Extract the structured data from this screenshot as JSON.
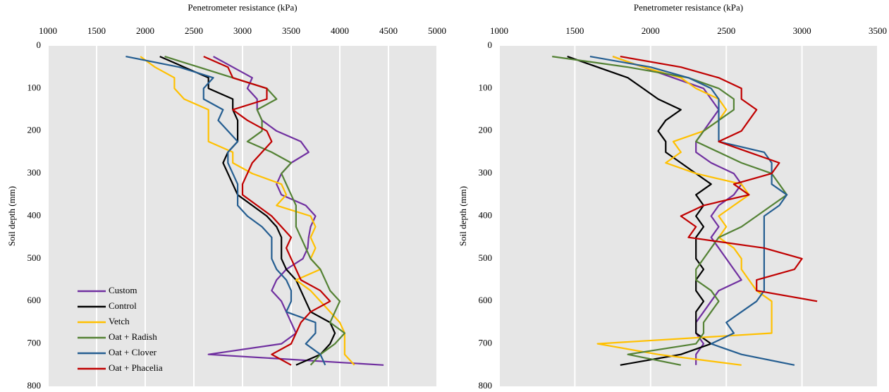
{
  "chart_data": [
    {
      "type": "line",
      "x_label": "Penetrometer resistance (kPa)",
      "y_label": "Soil depth (mm)",
      "xlim": [
        1000,
        5000
      ],
      "xticks": [
        1000,
        1500,
        2000,
        2500,
        3000,
        3500,
        4000,
        4500,
        5000
      ],
      "ylim": [
        0,
        800
      ],
      "yticks": [
        0,
        100,
        200,
        300,
        400,
        500,
        600,
        700,
        800
      ],
      "y_inverted": true,
      "grid": "x",
      "legend": "lower left",
      "y": [
        25,
        50,
        75,
        100,
        125,
        150,
        175,
        200,
        225,
        250,
        275,
        300,
        325,
        350,
        375,
        400,
        425,
        450,
        475,
        500,
        525,
        550,
        575,
        600,
        625,
        650,
        675,
        700,
        725,
        750
      ],
      "series": [
        {
          "name": "Custom",
          "color": "#7030a0",
          "values": [
            2700,
            2900,
            3100,
            3050,
            3150,
            3150,
            3200,
            3350,
            3600,
            3680,
            3500,
            3400,
            3350,
            3400,
            3650,
            3750,
            3700,
            3680,
            3670,
            3620,
            3450,
            3350,
            3300,
            3400,
            3450,
            3500,
            3550,
            3400,
            2650,
            4450
          ]
        },
        {
          "name": "Control",
          "color": "#000000",
          "values": [
            2150,
            2400,
            2650,
            2650,
            2900,
            2900,
            2950,
            2950,
            2950,
            2850,
            2800,
            2850,
            2900,
            2950,
            3100,
            3250,
            3350,
            3400,
            3400,
            3400,
            3450,
            3550,
            3600,
            3650,
            3700,
            3900,
            3950,
            3900,
            3800,
            3550
          ]
        },
        {
          "name": "Vetch",
          "color": "#ffc000",
          "values": [
            1950,
            2100,
            2300,
            2300,
            2400,
            2650,
            2650,
            2650,
            2650,
            2900,
            2900,
            3100,
            3400,
            3450,
            3350,
            3700,
            3750,
            3700,
            3750,
            3700,
            3800,
            3550,
            3700,
            3800,
            3900,
            4000,
            4050,
            4050,
            4050,
            4150
          ]
        },
        {
          "name": "Oat + Radish",
          "color": "#548235",
          "values": [
            2200,
            2550,
            2900,
            3250,
            3350,
            3150,
            3200,
            3200,
            3050,
            3300,
            3500,
            3400,
            3450,
            3500,
            3550,
            3550,
            3550,
            3600,
            3650,
            3700,
            3800,
            3850,
            3900,
            4000,
            3950,
            3900,
            4050,
            3950,
            3800,
            3700
          ]
        },
        {
          "name": "Oat + Clover",
          "color": "#255e91",
          "values": [
            1800,
            2350,
            2700,
            2600,
            2600,
            2800,
            2750,
            2850,
            2950,
            2850,
            2850,
            2900,
            2950,
            2950,
            2950,
            3050,
            3200,
            3300,
            3300,
            3300,
            3350,
            3450,
            3500,
            3500,
            3450,
            3750,
            3750,
            3650,
            3800,
            3850
          ]
        },
        {
          "name": "Oat + Phacelia",
          "color": "#c00000",
          "values": [
            2600,
            2850,
            2900,
            3250,
            3250,
            2900,
            3050,
            3250,
            3300,
            3200,
            3100,
            3050,
            3000,
            3000,
            3150,
            3300,
            3400,
            3500,
            3450,
            3500,
            3550,
            3600,
            3800,
            3900,
            3700,
            3600,
            3550,
            3500,
            3300,
            3500
          ]
        }
      ]
    },
    {
      "type": "line",
      "x_label": "Penetrometer resistance (kPa)",
      "y_label": "Soil depth (mm)",
      "xlim": [
        1000,
        3500
      ],
      "xticks": [
        1000,
        1500,
        2000,
        2500,
        3000,
        3500
      ],
      "ylim": [
        0,
        800
      ],
      "yticks": [
        0,
        100,
        200,
        300,
        400,
        500,
        600,
        700,
        800
      ],
      "y_inverted": true,
      "grid": "x",
      "y": [
        25,
        50,
        75,
        100,
        125,
        150,
        175,
        200,
        225,
        250,
        275,
        300,
        325,
        350,
        375,
        400,
        425,
        450,
        475,
        500,
        525,
        550,
        575,
        600,
        625,
        650,
        675,
        700,
        725,
        750
      ],
      "series": [
        {
          "color": "#7030a0",
          "values": [
            1750,
            1950,
            2150,
            2350,
            2400,
            2450,
            2400,
            2350,
            2300,
            2300,
            2400,
            2550,
            2600,
            2550,
            2450,
            2400,
            2450,
            2400,
            2450,
            2500,
            2550,
            2600,
            2450,
            2400,
            2350,
            2300,
            2300,
            2350,
            2300,
            2300
          ]
        },
        {
          "color": "#000000",
          "values": [
            1450,
            1650,
            1850,
            1950,
            2050,
            2200,
            2100,
            2050,
            2100,
            2100,
            2200,
            2300,
            2400,
            2300,
            2350,
            2300,
            2350,
            2300,
            2300,
            2300,
            2350,
            2300,
            2300,
            2350,
            2300,
            2300,
            2300,
            2400,
            2200,
            1800
          ]
        },
        {
          "color": "#ffc000",
          "values": [
            1750,
            1950,
            2200,
            2300,
            2450,
            2500,
            2450,
            2350,
            2150,
            2200,
            2100,
            2300,
            2600,
            2650,
            2550,
            2450,
            2500,
            2450,
            2550,
            2600,
            2600,
            2650,
            2700,
            2800,
            2800,
            2800,
            2800,
            1650,
            2050,
            2600
          ]
        },
        {
          "color": "#548235",
          "values": [
            1350,
            1850,
            2250,
            2450,
            2550,
            2550,
            2450,
            2350,
            2300,
            2450,
            2600,
            2800,
            2850,
            2900,
            2800,
            2700,
            2600,
            2450,
            2400,
            2350,
            2300,
            2300,
            2400,
            2450,
            2400,
            2350,
            2350,
            2300,
            1850,
            2200
          ]
        },
        {
          "color": "#255e91",
          "values": [
            1600,
            2000,
            2250,
            2400,
            2450,
            2450,
            2450,
            2450,
            2450,
            2750,
            2800,
            2800,
            2800,
            2900,
            2850,
            2750,
            2750,
            2750,
            2750,
            2750,
            2750,
            2750,
            2750,
            2700,
            2600,
            2500,
            2550,
            2400,
            2600,
            2950
          ]
        },
        {
          "color": "#c00000",
          "values": [
            1800,
            2200,
            2450,
            2600,
            2600,
            2700,
            2650,
            2600,
            2450,
            2650,
            2850,
            2800,
            2550,
            2650,
            2350,
            2200,
            2300,
            2250,
            2750,
            3000,
            2950,
            2700,
            2700,
            3100,
            null,
            null,
            null,
            null,
            null,
            null
          ]
        }
      ]
    }
  ]
}
